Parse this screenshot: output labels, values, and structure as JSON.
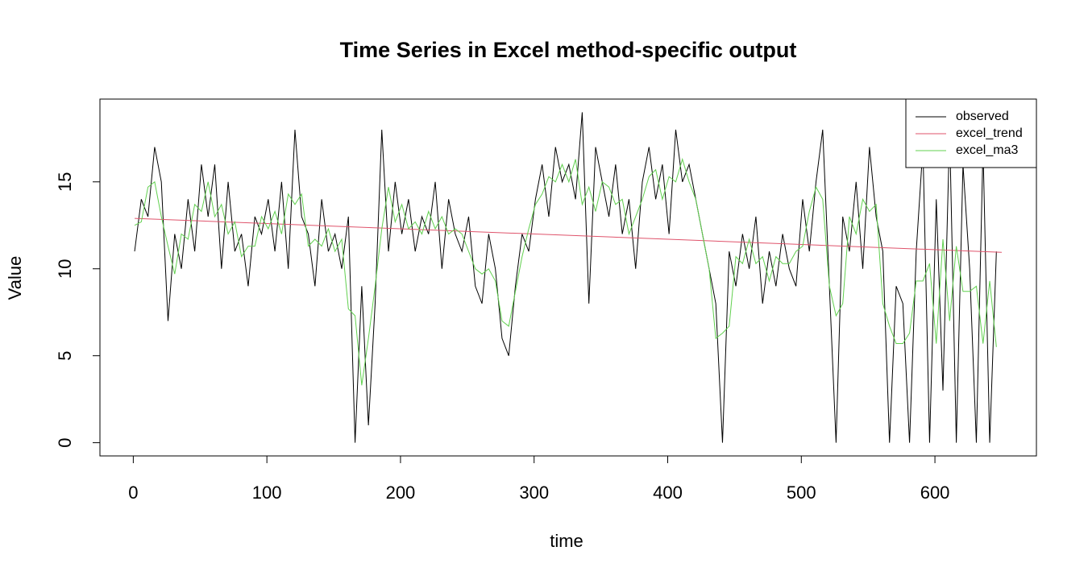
{
  "chart_data": {
    "type": "line",
    "title": "Time Series in Excel method-specific output",
    "x_label": "time",
    "y_label": "Value",
    "x": [
      1,
      6,
      11,
      16,
      21,
      26,
      31,
      36,
      41,
      46,
      51,
      56,
      61,
      66,
      71,
      76,
      81,
      86,
      91,
      96,
      101,
      106,
      111,
      116,
      121,
      126,
      131,
      136,
      141,
      146,
      151,
      156,
      161,
      166,
      171,
      176,
      181,
      186,
      191,
      196,
      201,
      206,
      211,
      216,
      221,
      226,
      231,
      236,
      241,
      246,
      251,
      256,
      261,
      266,
      271,
      276,
      281,
      286,
      291,
      296,
      301,
      306,
      311,
      316,
      321,
      326,
      331,
      336,
      341,
      346,
      351,
      356,
      361,
      366,
      371,
      376,
      381,
      386,
      391,
      396,
      401,
      406,
      411,
      416,
      421,
      426,
      431,
      436,
      441,
      446,
      451,
      456,
      461,
      466,
      471,
      476,
      481,
      486,
      491,
      496,
      501,
      506,
      511,
      516,
      521,
      526,
      531,
      536,
      541,
      546,
      551,
      556,
      561,
      566,
      571,
      576,
      581,
      586,
      591,
      596,
      601,
      606,
      611,
      616,
      621,
      626,
      631,
      636,
      641,
      646
    ],
    "series": [
      {
        "name": "observed",
        "color": "#000000",
        "values": [
          11,
          14,
          13,
          17,
          15,
          7,
          12,
          10,
          14,
          11,
          16,
          13,
          16,
          10,
          15,
          11,
          12,
          9,
          13,
          12,
          14,
          11,
          15,
          10,
          18,
          13,
          12,
          9,
          14,
          11,
          12,
          10,
          13,
          0,
          9,
          1,
          8,
          18,
          11,
          15,
          12,
          14,
          11,
          13,
          12,
          15,
          10,
          14,
          12,
          11,
          13,
          9,
          8,
          12,
          10,
          6,
          5,
          9,
          12,
          11,
          14,
          16,
          13,
          17,
          15,
          16,
          14,
          19,
          8,
          17,
          15,
          13,
          16,
          12,
          14,
          10,
          15,
          17,
          14,
          16,
          12,
          18,
          15,
          16,
          14,
          12,
          10,
          8,
          0,
          11,
          9,
          12,
          10,
          13,
          8,
          11,
          9,
          12,
          10,
          9,
          14,
          11,
          15,
          18,
          9,
          0,
          13,
          11,
          15,
          10,
          17,
          13,
          11,
          0,
          9,
          8,
          0,
          11,
          17,
          0,
          14,
          3,
          18,
          0,
          16,
          10,
          0,
          17,
          0,
          11
        ]
      },
      {
        "name": "excel_trend",
        "color": "#DF536B",
        "x": [
          1,
          650
        ],
        "values": [
          12.9,
          10.95
        ]
      },
      {
        "name": "excel_ma3",
        "color": "#61D04F",
        "values": [
          12.5,
          12.7,
          14.7,
          15,
          13,
          11.3,
          9.7,
          12,
          11.7,
          13.7,
          13.3,
          15,
          13,
          13.7,
          12,
          12.7,
          10.7,
          11.3,
          11.3,
          13,
          12.3,
          13.3,
          12,
          14.3,
          13.7,
          14.3,
          11.3,
          11.7,
          11.3,
          12.3,
          11,
          11.7,
          7.7,
          7.3,
          3.3,
          6,
          9,
          12.3,
          14.7,
          12.7,
          13.7,
          12.3,
          12.7,
          12,
          13.3,
          12.3,
          13,
          12,
          12.3,
          12,
          11,
          10,
          9.7,
          10,
          9.3,
          7,
          6.7,
          8.7,
          10.7,
          12.3,
          13.7,
          14.3,
          15.3,
          15,
          16,
          15,
          16.3,
          13.7,
          14.7,
          13.3,
          15,
          14.7,
          13.7,
          14,
          12,
          13,
          14,
          15.3,
          15.7,
          14,
          15.3,
          15,
          16.3,
          15,
          14,
          12,
          10,
          6,
          6.3,
          6.7,
          10.7,
          10.3,
          11.7,
          10.3,
          10.7,
          9.3,
          10.7,
          10.3,
          10.3,
          11,
          11.3,
          13.3,
          14.7,
          14,
          9,
          7.3,
          8,
          13,
          12,
          14,
          13.3,
          13.7,
          8,
          6.7,
          5.7,
          5.7,
          6.3,
          9.3,
          9.3,
          10.3,
          5.7,
          11.7,
          7,
          11.3,
          8.7,
          8.7,
          9,
          5.7,
          9.3,
          5.5
        ]
      }
    ],
    "xlim": [
      -24.96,
      675.96
    ],
    "xticks": [
      0,
      100,
      200,
      300,
      400,
      500,
      600
    ],
    "ylim": [
      -0.76,
      19.76
    ],
    "yticks": [
      0,
      5,
      10,
      15
    ],
    "legend": "topright"
  }
}
